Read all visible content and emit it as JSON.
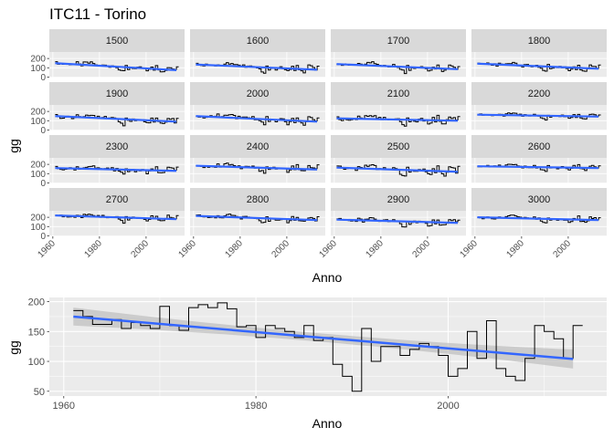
{
  "title": "ITC11 - Torino",
  "colors": {
    "panel": "#EBEBEB",
    "strip": "#D9D9D9",
    "grid": "#FFFFFF",
    "step": "#000000",
    "smooth": "#3366FF",
    "ribbon": "#BEBEBE",
    "tick_text": "#4D4D4D"
  },
  "chart_data": [
    {
      "type": "line",
      "facets": [
        "1500",
        "1600",
        "1700",
        "1800",
        "1900",
        "2000",
        "2100",
        "2200",
        "2300",
        "2400",
        "2500",
        "2600",
        "2700",
        "2800",
        "2900",
        "3000"
      ],
      "xlabel": "Anno",
      "ylabel": "gg",
      "xlim": [
        1958.5,
        2016.5
      ],
      "ylim": [
        -5,
        270
      ],
      "xticks": [
        1960,
        1980,
        2000
      ],
      "xtick_labels": [
        "1960",
        "1980",
        "2000"
      ],
      "yticks": [
        0,
        100,
        200
      ],
      "ytick_labels": [
        "0",
        "100",
        "200"
      ],
      "series_note": "step line per facet with blue linear trend",
      "facet_trend": [
        [
          150,
          75
        ],
        [
          135,
          80
        ],
        [
          140,
          85
        ],
        [
          145,
          90
        ],
        [
          150,
          90
        ],
        [
          150,
          90
        ],
        [
          125,
          100
        ],
        [
          165,
          145
        ],
        [
          160,
          130
        ],
        [
          185,
          145
        ],
        [
          165,
          120
        ],
        [
          180,
          160
        ],
        [
          220,
          180
        ],
        [
          215,
          170
        ],
        [
          175,
          140
        ],
        [
          200,
          170
        ]
      ],
      "facet_amp": [
        40,
        45,
        45,
        45,
        50,
        50,
        50,
        30,
        40,
        45,
        55,
        35,
        40,
        40,
        50,
        40
      ]
    },
    {
      "type": "line",
      "xlabel": "Anno",
      "ylabel": "gg",
      "xlim": [
        1958.5,
        2016.5
      ],
      "ylim": [
        42,
        207
      ],
      "xticks": [
        1960,
        1980,
        2000
      ],
      "xtick_labels": [
        "1960",
        "1980",
        "2000"
      ],
      "yticks": [
        50,
        100,
        150,
        200
      ],
      "ytick_labels": [
        "50",
        "100",
        "150",
        "200"
      ],
      "x": [
        1961,
        1962,
        1963,
        1964,
        1965,
        1966,
        1967,
        1968,
        1969,
        1970,
        1971,
        1972,
        1973,
        1974,
        1975,
        1976,
        1977,
        1978,
        1979,
        1980,
        1981,
        1982,
        1983,
        1984,
        1985,
        1986,
        1987,
        1988,
        1989,
        1990,
        1991,
        1992,
        1993,
        1994,
        1995,
        1996,
        1997,
        1998,
        1999,
        2000,
        2001,
        2002,
        2003,
        2004,
        2005,
        2006,
        2007,
        2008,
        2009,
        2010,
        2011,
        2012,
        2013
      ],
      "y": [
        185,
        175,
        162,
        162,
        170,
        155,
        165,
        160,
        155,
        192,
        160,
        152,
        190,
        195,
        190,
        198,
        188,
        158,
        160,
        140,
        160,
        155,
        150,
        140,
        160,
        135,
        140,
        95,
        75,
        50,
        155,
        100,
        125,
        125,
        110,
        120,
        130,
        125,
        110,
        75,
        88,
        150,
        105,
        168,
        88,
        75,
        68,
        105,
        160,
        150,
        138,
        105,
        160
      ],
      "series": [
        {
          "name": "",
          "type": "step"
        },
        {
          "name": "",
          "type": "smooth",
          "trend": [
            175,
            104
          ],
          "band_halfwidth": [
            15,
            16
          ],
          "band_mid_halfwidth": 7
        }
      ]
    }
  ]
}
